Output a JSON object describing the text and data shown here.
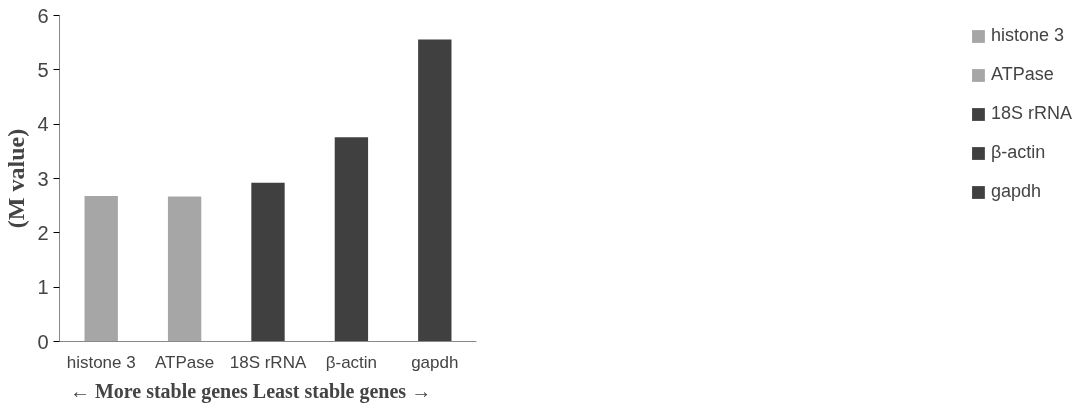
{
  "chart_data": {
    "type": "bar",
    "xlabel": "← More stable genes        Least stable genes →",
    "ylabel": "(M value)",
    "categories": [
      "histone 3",
      "ATPase",
      "18S rRNA",
      "β-actin",
      "gapdh"
    ],
    "series": [
      {
        "name": "histone 3",
        "color": "#a6a6a6",
        "values": [
          2.68,
          null,
          null,
          null,
          null
        ]
      },
      {
        "name": "ATPase",
        "color": "#a6a6a6",
        "values": [
          null,
          2.67,
          null,
          null,
          null
        ]
      },
      {
        "name": "18S rRNA",
        "color": "#404040",
        "values": [
          null,
          null,
          2.92,
          null,
          null
        ]
      },
      {
        "name": "β-actin",
        "color": "#404040",
        "values": [
          null,
          null,
          null,
          3.76,
          null
        ]
      },
      {
        "name": "gapdh",
        "color": "#404040",
        "values": [
          null,
          null,
          null,
          null,
          5.56
        ]
      }
    ],
    "ylim": [
      0,
      6
    ],
    "yticks": [
      0,
      1,
      2,
      3,
      4,
      5,
      6
    ],
    "grid": false,
    "legend": "right"
  }
}
